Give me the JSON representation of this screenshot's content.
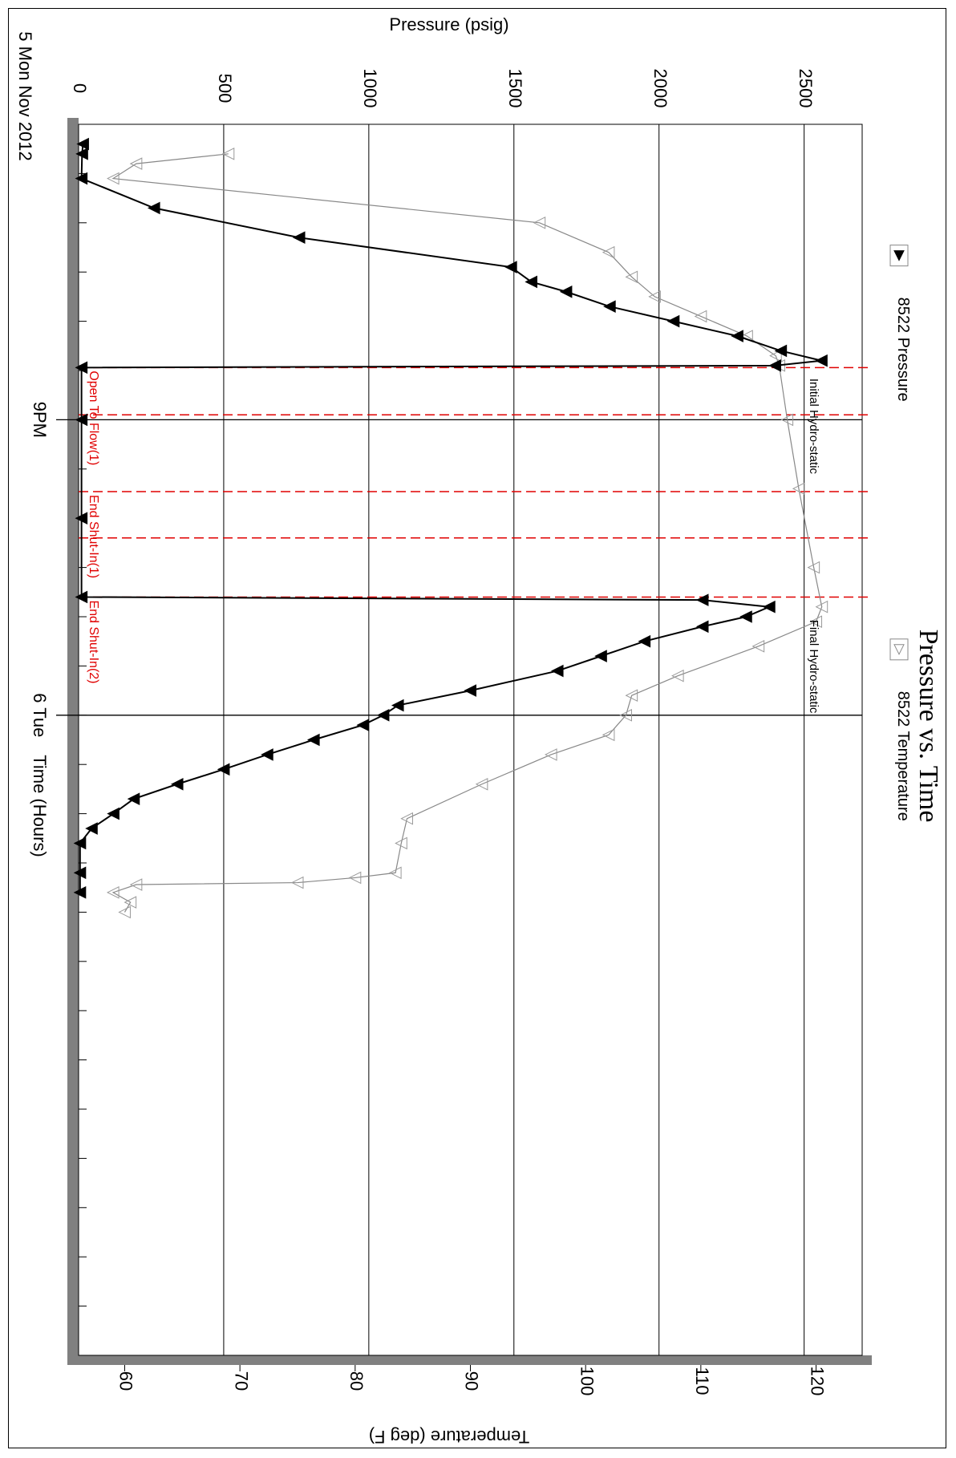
{
  "chart_data": {
    "type": "line",
    "orientation": "rotated-90-cw",
    "title": "Pressure vs. Time",
    "date_label": "5 Mon Nov 2012",
    "x_axis": {
      "label": "Time (Hours)",
      "unit": "hours",
      "range": [
        18.0,
        30.5
      ],
      "ticks": [
        {
          "value": 21,
          "label": "9PM"
        },
        {
          "value": 24,
          "label": "6 Tue"
        }
      ]
    },
    "y_axis_pressure": {
      "label": "Pressure (psig)",
      "range": [
        0,
        2700
      ],
      "ticks": [
        0,
        500,
        1000,
        1500,
        2000,
        2500
      ]
    },
    "y_axis_temperature": {
      "label": "Temperature (deg F)",
      "range": [
        56,
        124
      ],
      "ticks": [
        60,
        70,
        80,
        90,
        100,
        110,
        120
      ]
    },
    "grid": true,
    "series": [
      {
        "name": "8522 Pressure",
        "axis": "pressure",
        "marker": "filled-triangle",
        "color": "#000000",
        "points": [
          [
            18.2,
            15
          ],
          [
            18.3,
            12
          ],
          [
            18.55,
            10
          ],
          [
            18.85,
            260
          ],
          [
            19.15,
            760
          ],
          [
            19.45,
            1490
          ],
          [
            19.6,
            1560
          ],
          [
            19.7,
            1680
          ],
          [
            19.85,
            1830
          ],
          [
            20.0,
            2050
          ],
          [
            20.15,
            2270
          ],
          [
            20.3,
            2420
          ],
          [
            20.4,
            2560
          ],
          [
            20.45,
            2400
          ],
          [
            20.47,
            10
          ],
          [
            21.0,
            10
          ],
          [
            22.0,
            10
          ],
          [
            22.8,
            10
          ],
          [
            22.83,
            2150
          ],
          [
            22.9,
            2380
          ],
          [
            23.0,
            2300
          ],
          [
            23.1,
            2150
          ],
          [
            23.25,
            1950
          ],
          [
            23.4,
            1800
          ],
          [
            23.55,
            1650
          ],
          [
            23.75,
            1350
          ],
          [
            23.9,
            1100
          ],
          [
            24.0,
            1050
          ],
          [
            24.1,
            980
          ],
          [
            24.25,
            810
          ],
          [
            24.4,
            650
          ],
          [
            24.55,
            500
          ],
          [
            24.7,
            340
          ],
          [
            24.85,
            190
          ],
          [
            25.0,
            120
          ],
          [
            25.15,
            45
          ],
          [
            25.3,
            5
          ],
          [
            25.6,
            5
          ],
          [
            25.8,
            5
          ]
        ]
      },
      {
        "name": "8522 Temperature",
        "axis": "temperature",
        "marker": "hollow-triangle",
        "color": "#888888",
        "points": [
          [
            18.3,
            69
          ],
          [
            18.4,
            61
          ],
          [
            18.55,
            59
          ],
          [
            19.0,
            96
          ],
          [
            19.3,
            102
          ],
          [
            19.55,
            104
          ],
          [
            19.75,
            106
          ],
          [
            19.95,
            110
          ],
          [
            20.15,
            114
          ],
          [
            20.35,
            116.5
          ],
          [
            20.45,
            116.8
          ],
          [
            21.0,
            117.5
          ],
          [
            21.7,
            118.5
          ],
          [
            22.5,
            119.8
          ],
          [
            22.9,
            120.5
          ],
          [
            23.05,
            120.0
          ],
          [
            23.3,
            115
          ],
          [
            23.6,
            108
          ],
          [
            23.8,
            104
          ],
          [
            24.0,
            103.5
          ],
          [
            24.2,
            102
          ],
          [
            24.4,
            97
          ],
          [
            24.7,
            91
          ],
          [
            25.05,
            84.5
          ],
          [
            25.3,
            84
          ],
          [
            25.6,
            83.5
          ],
          [
            25.65,
            80
          ],
          [
            25.7,
            75
          ],
          [
            25.72,
            61
          ],
          [
            25.8,
            59
          ],
          [
            25.9,
            60.5
          ],
          [
            26.0,
            60
          ]
        ]
      }
    ],
    "events": [
      {
        "label": "Open To Flow(1)",
        "time": 20.47,
        "style": "dashed"
      },
      {
        "label": "",
        "time": 20.95,
        "style": "dashed"
      },
      {
        "label": "End Shut-In(1)",
        "time": 21.73,
        "style": "dashed"
      },
      {
        "label": "",
        "time": 22.2,
        "style": "dashed"
      },
      {
        "label": "End Shut-In(2)",
        "time": 22.8,
        "style": "dashed"
      }
    ],
    "annotations": [
      {
        "label": "Initial Hydro-static",
        "time": 20.45
      },
      {
        "label": "Final Hydro-static",
        "time": 22.9
      }
    ],
    "legend": {
      "position": "right",
      "entries": [
        "8522 Pressure",
        "8522 Temperature"
      ]
    },
    "colors": {
      "pressure": "#000000",
      "temperature": "#888888",
      "events": "#e00000",
      "plot_shadow": "#808080"
    }
  }
}
